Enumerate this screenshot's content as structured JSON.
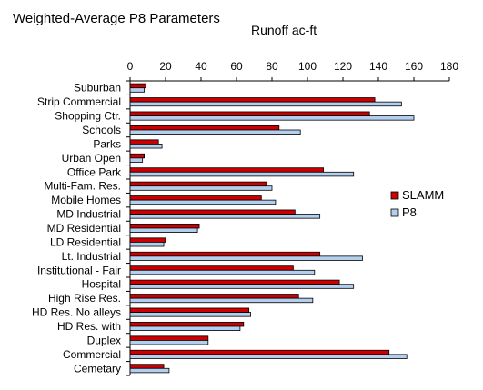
{
  "chart_data": {
    "type": "bar",
    "orientation": "horizontal",
    "title": "Weighted-Average P8 Parameters",
    "subtitle": "Runoff ac-ft",
    "xlim": [
      0,
      180
    ],
    "xticks": [
      "0",
      "20",
      "40",
      "60",
      "80",
      "100",
      "120",
      "140",
      "160",
      "180"
    ],
    "grid": false,
    "legend_position": "right",
    "categories": [
      "Suburban",
      "Strip Commercial",
      "Shopping Ctr.",
      "Schools",
      "Parks",
      "Urban Open",
      "Office Park",
      "Multi-Fam. Res.",
      "Mobile Homes",
      "MD Industrial",
      "MD Residential",
      "LD Residential",
      "Lt. Industrial",
      "Institutional - Fair",
      "Hospital",
      "High Rise Res.",
      "HD Res. No alleys",
      "HD Res. with",
      "Duplex",
      "Commercial",
      "Cemetary"
    ],
    "series": [
      {
        "name": "SLAMM",
        "color": "#cc0000",
        "values": [
          9,
          138,
          135,
          84,
          16,
          8,
          109,
          77,
          74,
          93,
          39,
          20,
          107,
          92,
          118,
          95,
          67,
          64,
          44,
          146,
          19
        ]
      },
      {
        "name": "P8",
        "color": "#b4cfee",
        "values": [
          8,
          153,
          160,
          96,
          18,
          7,
          126,
          80,
          82,
          107,
          38,
          19,
          131,
          104,
          126,
          103,
          68,
          62,
          44,
          156,
          22
        ]
      }
    ]
  }
}
